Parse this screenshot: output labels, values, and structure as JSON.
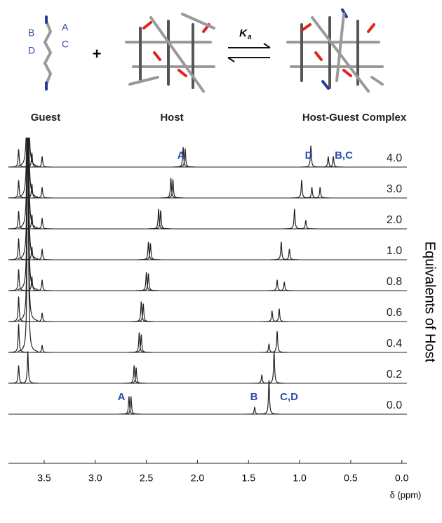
{
  "diagram": {
    "guest_label": "Guest",
    "host_label": "Host",
    "complex_label": "Host-Guest Complex",
    "plus": "+",
    "constant": "K",
    "constant_sub": "a",
    "atoms": [
      "B",
      "A",
      "D",
      "C"
    ]
  },
  "chart_data": {
    "type": "nmr-stack",
    "x_label": "δ (ppm)",
    "y_label": "Equivalents of Host",
    "xlim": [
      3.85,
      -0.05
    ],
    "xticks": [
      {
        "value": 3.5,
        "label": "3.5"
      },
      {
        "value": 3,
        "label": "3.0"
      },
      {
        "value": 2.5,
        "label": "2.5"
      },
      {
        "value": 2,
        "label": "2.0"
      },
      {
        "value": 1.5,
        "label": "1.5"
      },
      {
        "value": 1,
        "label": "1.0"
      },
      {
        "value": 0.5,
        "label": "0.5"
      },
      {
        "value": 0,
        "label": "0.0"
      }
    ],
    "series": [
      {
        "name": "0.0",
        "color": "#222222",
        "x": [
          2.67,
          2.65,
          1.44,
          1.3
        ],
        "values": [
          25,
          25,
          10,
          48
        ]
      },
      {
        "name": "0.2",
        "color": "#222222",
        "x": [
          3.75,
          3.66,
          2.62,
          2.6,
          1.37,
          1.25
        ],
        "values": [
          25,
          45,
          25,
          22,
          12,
          45
        ]
      },
      {
        "name": "0.4",
        "color": "#222222",
        "x": [
          3.75,
          3.66,
          3.52,
          2.57,
          2.55,
          1.3,
          1.22
        ],
        "values": [
          40,
          400,
          10,
          28,
          25,
          12,
          30
        ]
      },
      {
        "name": "0.6",
        "color": "#222222",
        "x": [
          3.75,
          3.66,
          3.52,
          2.55,
          2.53,
          1.27,
          1.2
        ],
        "values": [
          35,
          400,
          12,
          28,
          25,
          15,
          18
        ]
      },
      {
        "name": "0.8",
        "color": "#222222",
        "x": [
          3.75,
          3.66,
          3.62,
          3.52,
          2.5,
          2.48,
          1.22,
          1.15
        ],
        "values": [
          30,
          400,
          20,
          15,
          26,
          24,
          15,
          12
        ]
      },
      {
        "name": "1.0",
        "color": "#222222",
        "x": [
          3.75,
          3.66,
          3.62,
          3.52,
          2.48,
          2.46,
          1.18,
          1.1
        ],
        "values": [
          30,
          400,
          18,
          15,
          25,
          23,
          25,
          15
        ]
      },
      {
        "name": "2.0",
        "color": "#222222",
        "x": [
          3.75,
          3.66,
          3.62,
          3.52,
          2.38,
          2.36,
          1.05,
          0.94
        ],
        "values": [
          25,
          400,
          20,
          15,
          28,
          26,
          28,
          12
        ]
      },
      {
        "name": "3.0",
        "color": "#222222",
        "x": [
          3.75,
          3.66,
          3.62,
          3.52,
          2.26,
          2.24,
          0.98,
          0.88,
          0.8
        ],
        "values": [
          25,
          400,
          20,
          15,
          28,
          26,
          25,
          15,
          15
        ]
      },
      {
        "name": "4.0",
        "color": "#222222",
        "x": [
          3.75,
          3.66,
          3.62,
          3.52,
          2.14,
          2.12,
          0.89,
          0.72,
          0.67
        ],
        "values": [
          25,
          400,
          20,
          15,
          28,
          26,
          30,
          15,
          15
        ]
      }
    ],
    "annotations": [
      "A",
      "D",
      "B,C",
      "A",
      "B",
      "C,D"
    ]
  }
}
